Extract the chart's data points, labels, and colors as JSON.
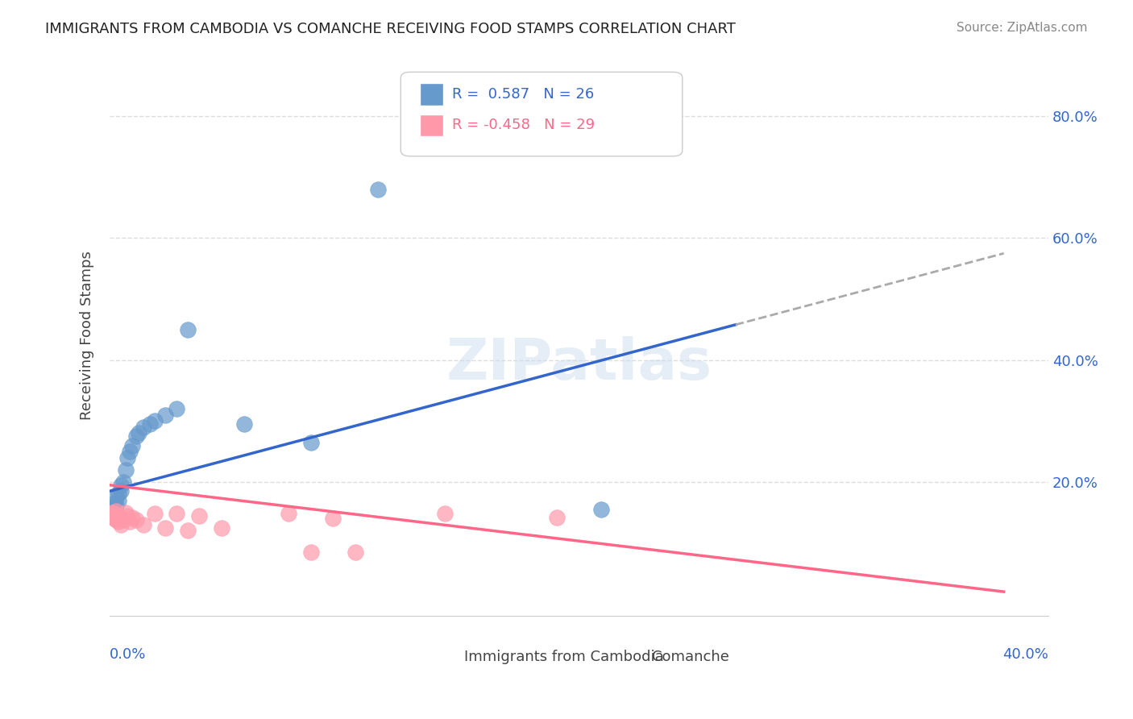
{
  "title": "IMMIGRANTS FROM CAMBODIA VS COMANCHE RECEIVING FOOD STAMPS CORRELATION CHART",
  "source": "Source: ZipAtlas.com",
  "ylabel": "Receiving Food Stamps",
  "ytick_values": [
    0.2,
    0.4,
    0.6,
    0.8
  ],
  "blue_color": "#6699cc",
  "pink_color": "#ff99aa",
  "line_blue": "#3366cc",
  "line_pink": "#ff6688",
  "line_gray_dash": "#aaaaaa",
  "watermark": "ZIPatlas",
  "cambodia_points": [
    [
      0.001,
      0.155
    ],
    [
      0.002,
      0.165
    ],
    [
      0.002,
      0.16
    ],
    [
      0.003,
      0.175
    ],
    [
      0.003,
      0.162
    ],
    [
      0.004,
      0.182
    ],
    [
      0.004,
      0.17
    ],
    [
      0.005,
      0.195
    ],
    [
      0.005,
      0.185
    ],
    [
      0.006,
      0.2
    ],
    [
      0.007,
      0.22
    ],
    [
      0.008,
      0.24
    ],
    [
      0.009,
      0.25
    ],
    [
      0.01,
      0.26
    ],
    [
      0.012,
      0.275
    ],
    [
      0.013,
      0.28
    ],
    [
      0.015,
      0.29
    ],
    [
      0.018,
      0.295
    ],
    [
      0.02,
      0.3
    ],
    [
      0.025,
      0.31
    ],
    [
      0.03,
      0.32
    ],
    [
      0.035,
      0.45
    ],
    [
      0.06,
      0.295
    ],
    [
      0.09,
      0.265
    ],
    [
      0.12,
      0.68
    ],
    [
      0.22,
      0.155
    ]
  ],
  "comanche_points": [
    [
      0.001,
      0.15
    ],
    [
      0.001,
      0.145
    ],
    [
      0.002,
      0.148
    ],
    [
      0.002,
      0.14
    ],
    [
      0.003,
      0.152
    ],
    [
      0.003,
      0.138
    ],
    [
      0.004,
      0.145
    ],
    [
      0.004,
      0.135
    ],
    [
      0.005,
      0.142
    ],
    [
      0.005,
      0.13
    ],
    [
      0.006,
      0.138
    ],
    [
      0.007,
      0.15
    ],
    [
      0.008,
      0.145
    ],
    [
      0.009,
      0.135
    ],
    [
      0.01,
      0.142
    ],
    [
      0.012,
      0.138
    ],
    [
      0.015,
      0.13
    ],
    [
      0.02,
      0.148
    ],
    [
      0.025,
      0.125
    ],
    [
      0.03,
      0.148
    ],
    [
      0.035,
      0.12
    ],
    [
      0.04,
      0.145
    ],
    [
      0.05,
      0.125
    ],
    [
      0.08,
      0.148
    ],
    [
      0.1,
      0.14
    ],
    [
      0.15,
      0.148
    ],
    [
      0.2,
      0.142
    ],
    [
      0.09,
      0.085
    ],
    [
      0.11,
      0.085
    ]
  ],
  "xlim": [
    0.0,
    0.42
  ],
  "ylim": [
    -0.02,
    0.9
  ],
  "blue_trendline": [
    0.0,
    0.185,
    0.4,
    0.575
  ],
  "blue_trendline_solid_end": 0.28,
  "pink_trendline": [
    0.0,
    0.195,
    0.4,
    0.02
  ]
}
